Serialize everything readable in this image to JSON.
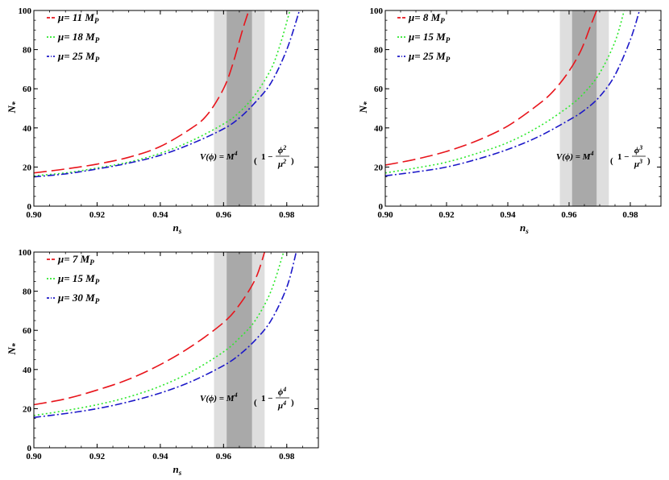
{
  "chart_data": [
    {
      "type": "line",
      "title": "",
      "xlabel": "n_s",
      "ylabel": "N_*",
      "xlim": [
        0.9,
        0.99
      ],
      "ylim": [
        0,
        100
      ],
      "xticks": [
        "0.90",
        "0.92",
        "0.94",
        "0.96",
        "0.98"
      ],
      "yticks": [
        "0",
        "20",
        "40",
        "60",
        "80",
        "100"
      ],
      "bands": {
        "light": [
          0.957,
          0.973
        ],
        "dark": [
          0.961,
          0.969
        ]
      },
      "formula": {
        "prefix": "V(ϕ) = M",
        "exp4": "4",
        "one_minus": "1 −",
        "num": "ϕ",
        "den": "μ",
        "power": "2"
      },
      "legend_position": "top-left",
      "series": [
        {
          "name": "μ= 11 M",
          "sub": "P",
          "color": "#e8141b",
          "dash": "long",
          "points": [
            [
              0.9,
              17
            ],
            [
              0.91,
              19
            ],
            [
              0.92,
              21.5
            ],
            [
              0.93,
              25
            ],
            [
              0.94,
              30.5
            ],
            [
              0.95,
              40
            ],
            [
              0.955,
              47
            ],
            [
              0.96,
              60
            ],
            [
              0.963,
              73
            ],
            [
              0.966,
              90
            ],
            [
              0.968,
              100
            ]
          ]
        },
        {
          "name": "μ= 18 M",
          "sub": "P",
          "color": "#2ee82e",
          "dash": "dot",
          "points": [
            [
              0.9,
              15.5
            ],
            [
              0.91,
              17
            ],
            [
              0.92,
              19.5
            ],
            [
              0.93,
              22.5
            ],
            [
              0.94,
              27
            ],
            [
              0.95,
              33.5
            ],
            [
              0.96,
              42
            ],
            [
              0.965,
              48
            ],
            [
              0.97,
              57
            ],
            [
              0.975,
              70
            ],
            [
              0.978,
              83
            ],
            [
              0.981,
              100
            ]
          ]
        },
        {
          "name": "μ= 25 M",
          "sub": "P",
          "color": "#1c18c8",
          "dash": "dashdot",
          "points": [
            [
              0.9,
              15
            ],
            [
              0.91,
              16.5
            ],
            [
              0.92,
              19
            ],
            [
              0.93,
              22
            ],
            [
              0.94,
              26
            ],
            [
              0.95,
              32
            ],
            [
              0.96,
              39.5
            ],
            [
              0.965,
              45
            ],
            [
              0.97,
              53
            ],
            [
              0.975,
              63
            ],
            [
              0.98,
              80
            ],
            [
              0.984,
              100
            ]
          ]
        }
      ]
    },
    {
      "type": "line",
      "title": "",
      "xlabel": "n_s",
      "ylabel": "N_*",
      "xlim": [
        0.9,
        0.99
      ],
      "ylim": [
        0,
        100
      ],
      "xticks": [
        "0.90",
        "0.92",
        "0.94",
        "0.96",
        "0.98"
      ],
      "yticks": [
        "0",
        "20",
        "40",
        "60",
        "80",
        "100"
      ],
      "bands": {
        "light": [
          0.957,
          0.973
        ],
        "dark": [
          0.961,
          0.969
        ]
      },
      "formula": {
        "prefix": "V(ϕ) = M",
        "exp4": "4",
        "one_minus": "1 −",
        "num": "ϕ",
        "den": "μ",
        "power": "3"
      },
      "legend_position": "top-left",
      "series": [
        {
          "name": "μ= 8 M",
          "sub": "P",
          "color": "#e8141b",
          "dash": "long",
          "points": [
            [
              0.9,
              21
            ],
            [
              0.91,
              24
            ],
            [
              0.92,
              28
            ],
            [
              0.93,
              33.5
            ],
            [
              0.94,
              41
            ],
            [
              0.95,
              52
            ],
            [
              0.955,
              59
            ],
            [
              0.96,
              69
            ],
            [
              0.964,
              80
            ],
            [
              0.967,
              92
            ],
            [
              0.969,
              100
            ]
          ]
        },
        {
          "name": "μ= 15 M",
          "sub": "P",
          "color": "#2ee82e",
          "dash": "dot",
          "points": [
            [
              0.9,
              17
            ],
            [
              0.91,
              19.5
            ],
            [
              0.92,
              22.5
            ],
            [
              0.93,
              27
            ],
            [
              0.94,
              32.5
            ],
            [
              0.95,
              40.5
            ],
            [
              0.96,
              51
            ],
            [
              0.965,
              58
            ],
            [
              0.97,
              68
            ],
            [
              0.975,
              84
            ],
            [
              0.978,
              100
            ]
          ]
        },
        {
          "name": "μ= 25 M",
          "sub": "P",
          "color": "#1c18c8",
          "dash": "dashdot",
          "points": [
            [
              0.9,
              15.5
            ],
            [
              0.91,
              17.5
            ],
            [
              0.92,
              20
            ],
            [
              0.93,
              24
            ],
            [
              0.94,
              29
            ],
            [
              0.95,
              35.5
            ],
            [
              0.96,
              44
            ],
            [
              0.965,
              49
            ],
            [
              0.97,
              56
            ],
            [
              0.975,
              67
            ],
            [
              0.98,
              85
            ],
            [
              0.983,
              100
            ]
          ]
        }
      ]
    },
    {
      "type": "line",
      "title": "",
      "xlabel": "n_s",
      "ylabel": "N_*",
      "xlim": [
        0.9,
        0.99
      ],
      "ylim": [
        0,
        100
      ],
      "xticks": [
        "0.90",
        "0.92",
        "0.94",
        "0.96",
        "0.98"
      ],
      "yticks": [
        "0",
        "20",
        "40",
        "60",
        "80",
        "100"
      ],
      "bands": {
        "light": [
          0.957,
          0.973
        ],
        "dark": [
          0.961,
          0.969
        ]
      },
      "formula": {
        "prefix": "V(ϕ) = M",
        "exp4": "4",
        "one_minus": "1 −",
        "num": "ϕ",
        "den": "μ",
        "power": "4"
      },
      "legend_position": "top-left",
      "series": [
        {
          "name": "μ= 7 M",
          "sub": "P",
          "color": "#e8141b",
          "dash": "long",
          "points": [
            [
              0.9,
              22
            ],
            [
              0.91,
              25
            ],
            [
              0.92,
              29.5
            ],
            [
              0.93,
              35
            ],
            [
              0.94,
              42.5
            ],
            [
              0.95,
              52
            ],
            [
              0.96,
              64
            ],
            [
              0.965,
              73
            ],
            [
              0.97,
              86
            ],
            [
              0.973,
              100
            ]
          ]
        },
        {
          "name": "μ= 15 M",
          "sub": "P",
          "color": "#2ee82e",
          "dash": "dot",
          "points": [
            [
              0.9,
              16.5
            ],
            [
              0.91,
              19
            ],
            [
              0.92,
              22
            ],
            [
              0.93,
              26
            ],
            [
              0.94,
              31.5
            ],
            [
              0.95,
              39
            ],
            [
              0.96,
              49
            ],
            [
              0.965,
              56
            ],
            [
              0.97,
              65
            ],
            [
              0.975,
              80
            ],
            [
              0.979,
              100
            ]
          ]
        },
        {
          "name": "μ= 30 M",
          "sub": "P",
          "color": "#1c18c8",
          "dash": "dashdot",
          "points": [
            [
              0.9,
              15.5
            ],
            [
              0.91,
              17.5
            ],
            [
              0.92,
              20
            ],
            [
              0.93,
              23.5
            ],
            [
              0.94,
              28
            ],
            [
              0.95,
              34
            ],
            [
              0.96,
              42
            ],
            [
              0.965,
              47.5
            ],
            [
              0.97,
              55
            ],
            [
              0.975,
              65
            ],
            [
              0.98,
              82
            ],
            [
              0.983,
              100
            ]
          ]
        }
      ]
    }
  ]
}
